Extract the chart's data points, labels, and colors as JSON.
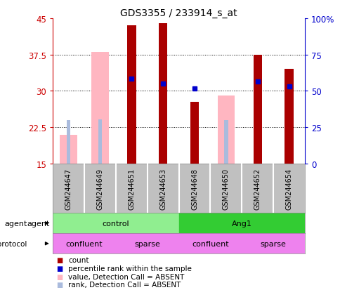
{
  "title": "GDS3355 / 233914_s_at",
  "samples": [
    "GSM244647",
    "GSM244649",
    "GSM244651",
    "GSM244653",
    "GSM244648",
    "GSM244650",
    "GSM244652",
    "GSM244654"
  ],
  "ylim_left": [
    15,
    45
  ],
  "ylim_right": [
    0,
    100
  ],
  "yticks_left": [
    15,
    22.5,
    30,
    37.5,
    45
  ],
  "yticks_right": [
    0,
    25,
    50,
    75,
    100
  ],
  "count_values": [
    null,
    null,
    43.5,
    44.0,
    27.8,
    null,
    37.5,
    34.5
  ],
  "rank_values": [
    null,
    null,
    32.5,
    31.5,
    30.5,
    null,
    32.0,
    31.0
  ],
  "absent_value_bars": [
    21.0,
    38.0,
    null,
    null,
    null,
    29.0,
    null,
    null
  ],
  "absent_rank_bars": [
    30.0,
    30.5,
    null,
    null,
    30.5,
    30.0,
    null,
    null
  ],
  "agent_groups": [
    {
      "label": "control",
      "start": 0,
      "end": 4,
      "color": "#90EE90"
    },
    {
      "label": "Ang1",
      "start": 4,
      "end": 8,
      "color": "#33CC33"
    }
  ],
  "growth_groups": [
    {
      "label": "confluent",
      "start": 0,
      "end": 2,
      "color": "#EE82EE"
    },
    {
      "label": "sparse",
      "start": 2,
      "end": 4,
      "color": "#EE82EE"
    },
    {
      "label": "confluent",
      "start": 4,
      "end": 6,
      "color": "#EE82EE"
    },
    {
      "label": "sparse",
      "start": 6,
      "end": 8,
      "color": "#EE82EE"
    }
  ],
  "count_color": "#AA0000",
  "rank_color": "#0000CC",
  "absent_value_color": "#FFB6C1",
  "absent_rank_color": "#AABBDD",
  "tick_color_left": "#CC0000",
  "tick_color_right": "#0000CC",
  "legend_items": [
    {
      "label": "count",
      "color": "#AA0000"
    },
    {
      "label": "percentile rank within the sample",
      "color": "#0000CC"
    },
    {
      "label": "value, Detection Call = ABSENT",
      "color": "#FFB6C1"
    },
    {
      "label": "rank, Detection Call = ABSENT",
      "color": "#AABBDD"
    }
  ]
}
